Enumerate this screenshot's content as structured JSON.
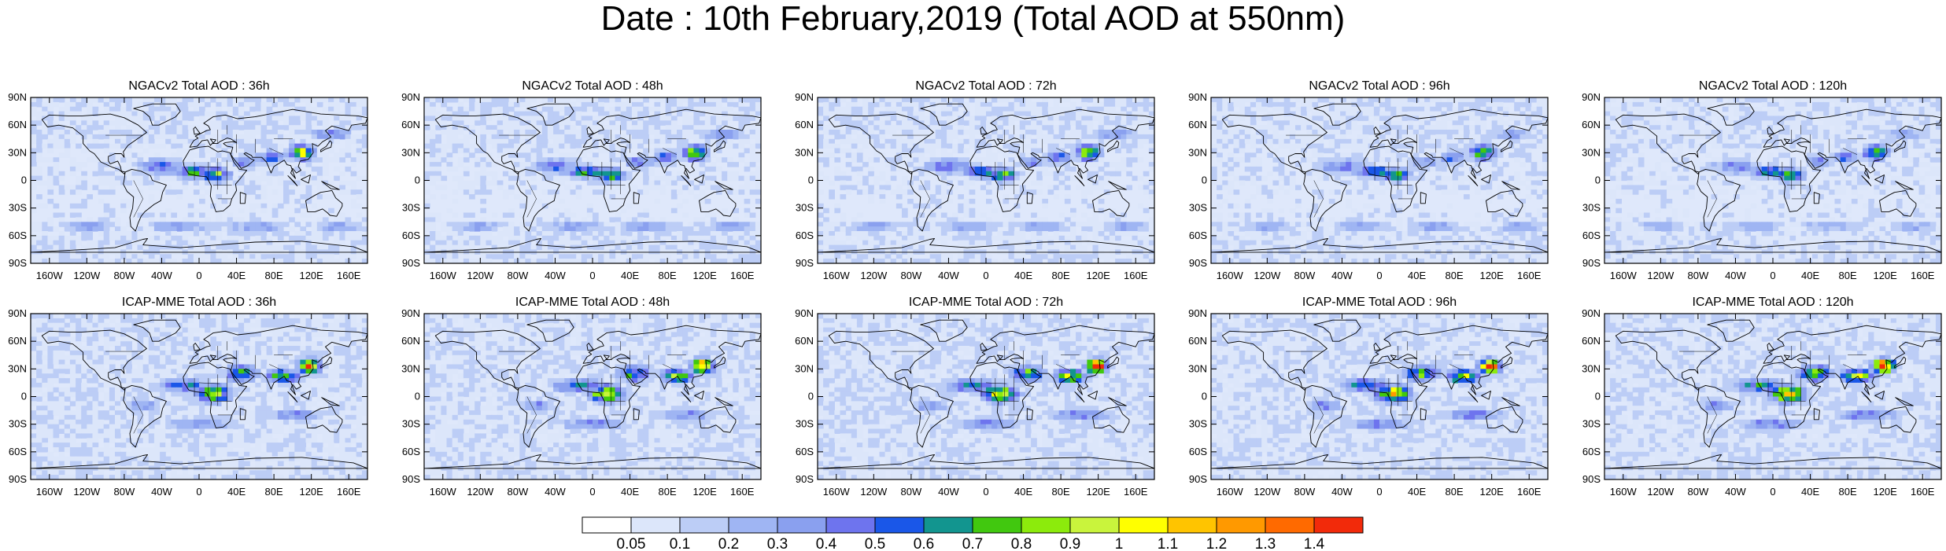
{
  "title": "Date : 10th February,2019 (Total AOD at 550nm)",
  "chart_data": [
    {
      "type": "heatmap",
      "title": "NGACv2 Total AOD : 36h",
      "model": "NGACv2",
      "lead": "36h"
    },
    {
      "type": "heatmap",
      "title": "NGACv2 Total AOD : 48h",
      "model": "NGACv2",
      "lead": "48h"
    },
    {
      "type": "heatmap",
      "title": "NGACv2 Total AOD : 72h",
      "model": "NGACv2",
      "lead": "72h"
    },
    {
      "type": "heatmap",
      "title": "NGACv2 Total AOD : 96h",
      "model": "NGACv2",
      "lead": "96h"
    },
    {
      "type": "heatmap",
      "title": "NGACv2 Total AOD : 120h",
      "model": "NGACv2",
      "lead": "120h"
    },
    {
      "type": "heatmap",
      "title": "ICAP-MME Total AOD : 36h",
      "model": "ICAP-MME",
      "lead": "36h"
    },
    {
      "type": "heatmap",
      "title": "ICAP-MME Total AOD : 48h",
      "model": "ICAP-MME",
      "lead": "48h"
    },
    {
      "type": "heatmap",
      "title": "ICAP-MME Total AOD : 72h",
      "model": "ICAP-MME",
      "lead": "72h"
    },
    {
      "type": "heatmap",
      "title": "ICAP-MME Total AOD : 96h",
      "model": "ICAP-MME",
      "lead": "96h"
    },
    {
      "type": "heatmap",
      "title": "ICAP-MME Total AOD : 120h",
      "model": "ICAP-MME",
      "lead": "120h"
    }
  ],
  "axes": {
    "lat_ticks": [
      "90N",
      "60N",
      "30N",
      "0",
      "30S",
      "60S",
      "90S"
    ],
    "lon_ticks": [
      "160W",
      "120W",
      "80W",
      "40W",
      "0",
      "40E",
      "80E",
      "120E",
      "160E"
    ],
    "lat_values": [
      90,
      60,
      30,
      0,
      -30,
      -60,
      -90
    ],
    "lon_values": [
      -160,
      -120,
      -80,
      -40,
      0,
      40,
      80,
      120,
      160
    ],
    "xlim": [
      -180,
      180
    ],
    "ylim": [
      -90,
      90
    ]
  },
  "colorbar": {
    "labels": [
      "0.05",
      "0.1",
      "0.2",
      "0.3",
      "0.4",
      "0.5",
      "0.6",
      "0.7",
      "0.8",
      "0.9",
      "1",
      "1.1",
      "1.2",
      "1.3",
      "1.4"
    ],
    "colors": [
      "#ffffff",
      "#dce6fa",
      "#bccdf6",
      "#9fb5f3",
      "#8aa0ef",
      "#6e74ee",
      "#1a57e8",
      "#12958f",
      "#41c80f",
      "#8ceb0c",
      "#c9f43c",
      "#ffff00",
      "#ffc400",
      "#ff9900",
      "#ff6a00",
      "#f22a0a"
    ]
  }
}
